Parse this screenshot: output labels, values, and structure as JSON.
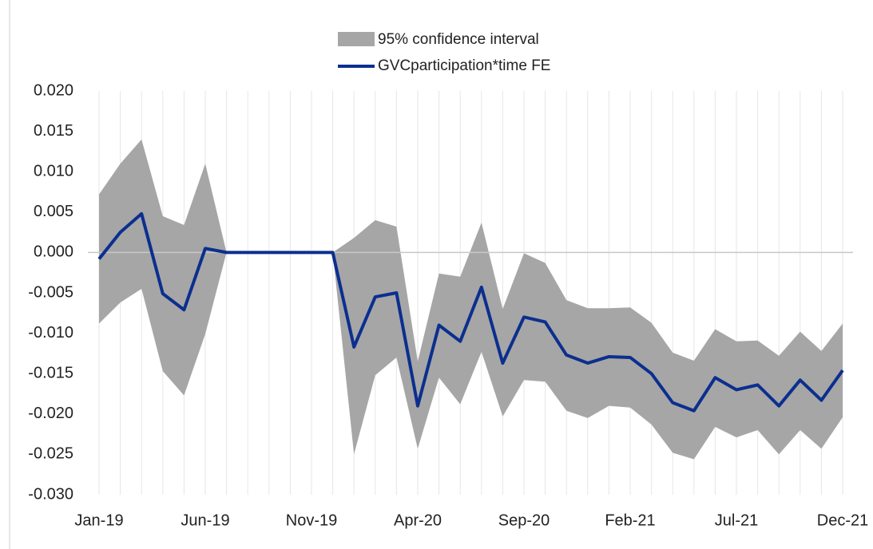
{
  "chart_data": {
    "type": "line",
    "categories": [
      "Jan-19",
      null,
      null,
      null,
      null,
      "Jun-19",
      null,
      null,
      null,
      null,
      "Nov-19",
      null,
      null,
      null,
      null,
      "Apr-20",
      null,
      null,
      null,
      null,
      "Sep-20",
      null,
      null,
      null,
      null,
      "Feb-21",
      null,
      null,
      null,
      null,
      "Jul-21",
      null,
      null,
      null,
      null,
      "Dec-21"
    ],
    "band": {
      "name": "95% confidence interval",
      "color": "#a6a6a6",
      "upper": [
        0.0072,
        0.011,
        0.014,
        0.0045,
        0.0034,
        0.011,
        0,
        0,
        0,
        0,
        0,
        0,
        0.0018,
        0.004,
        0.0032,
        -0.0135,
        -0.0026,
        -0.003,
        0.0037,
        -0.007,
        -0.0001,
        -0.0013,
        -0.0059,
        -0.0069,
        -0.0069,
        -0.0068,
        -0.0087,
        -0.0124,
        -0.0134,
        -0.0095,
        -0.011,
        -0.0109,
        -0.0128,
        -0.0098,
        -0.0122,
        -0.0088
      ],
      "lower": [
        -0.0088,
        -0.0062,
        -0.0045,
        -0.0147,
        -0.0177,
        -0.0101,
        0,
        0,
        0,
        0,
        0,
        0,
        -0.025,
        -0.0152,
        -0.013,
        -0.0243,
        -0.0155,
        -0.0188,
        -0.0123,
        -0.0203,
        -0.0158,
        -0.016,
        -0.0196,
        -0.0205,
        -0.019,
        -0.0192,
        -0.0213,
        -0.0248,
        -0.0256,
        -0.0216,
        -0.0229,
        -0.022,
        -0.025,
        -0.022,
        -0.0243,
        -0.0204
      ]
    },
    "series": [
      {
        "name": "GVCparticipation*time FE",
        "color": "#0b2f8f",
        "values": [
          -0.0008,
          0.0025,
          0.0048,
          -0.0051,
          -0.0071,
          0.0005,
          0,
          0,
          0,
          0,
          0,
          0,
          -0.0117,
          -0.0055,
          -0.005,
          -0.019,
          -0.009,
          -0.011,
          -0.0043,
          -0.0137,
          -0.008,
          -0.0086,
          -0.0127,
          -0.0137,
          -0.0129,
          -0.013,
          -0.015,
          -0.0186,
          -0.0196,
          -0.0155,
          -0.017,
          -0.0164,
          -0.019,
          -0.0158,
          -0.0183,
          -0.0146
        ]
      }
    ],
    "ylim": [
      -0.03,
      0.02
    ],
    "yticks": [
      {
        "value": -0.03,
        "label": "-0.030"
      },
      {
        "value": -0.025,
        "label": "-0.025"
      },
      {
        "value": -0.02,
        "label": "-0.020"
      },
      {
        "value": -0.015,
        "label": "-0.015"
      },
      {
        "value": -0.01,
        "label": "-0.010"
      },
      {
        "value": -0.005,
        "label": "-0.005"
      },
      {
        "value": 0,
        "label": "0.000"
      },
      {
        "value": 0.005,
        "label": "0.005"
      },
      {
        "value": 0.01,
        "label": "0.010"
      },
      {
        "value": 0.015,
        "label": "0.015"
      },
      {
        "value": 0.02,
        "label": "0.020"
      }
    ],
    "grid": true
  }
}
